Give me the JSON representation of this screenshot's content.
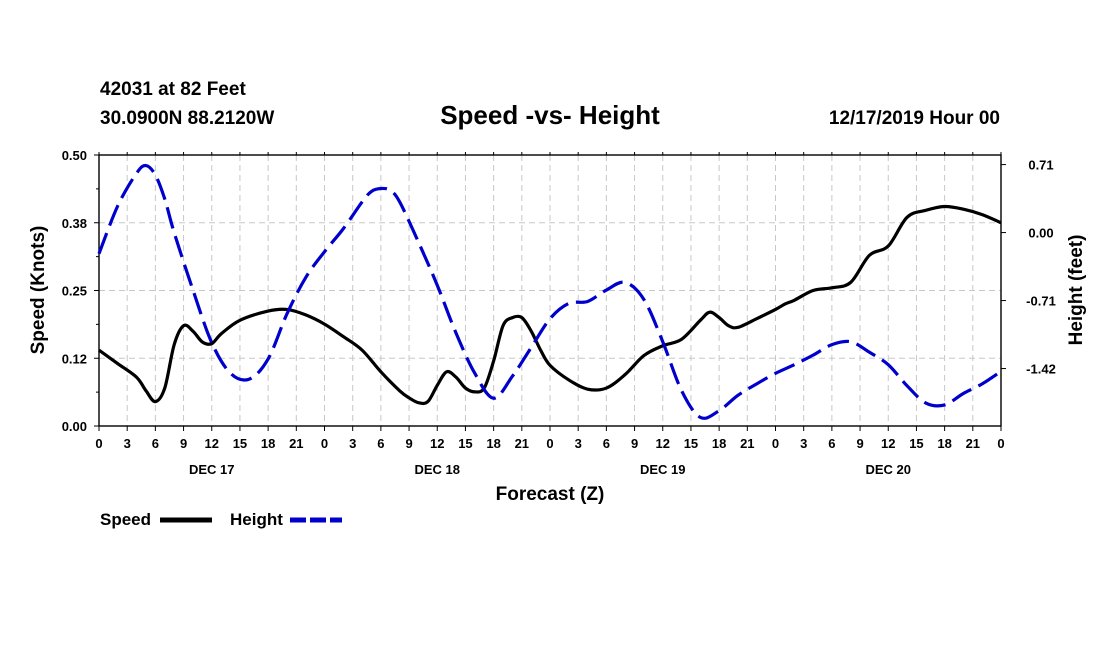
{
  "header": {
    "station": "42031 at 82 Feet",
    "location": "30.0900N 88.2120W",
    "title": "Speed -vs- Height",
    "date": "12/17/2019 Hour 00"
  },
  "legend": {
    "speed_label": "Speed",
    "height_label": "Height"
  },
  "chart_data": {
    "type": "line",
    "title": "Speed -vs- Height",
    "xlabel": "Forecast (Z)",
    "ylabel": "Speed (Knots)",
    "y2label": "Height (feet)",
    "xlim": [
      0,
      96
    ],
    "ylim": [
      0.0,
      0.5
    ],
    "y2lim": [
      -2.02,
      0.81
    ],
    "x_tick_values": [
      0,
      3,
      6,
      9,
      12,
      15,
      18,
      21,
      24,
      27,
      30,
      33,
      36,
      39,
      42,
      45,
      48,
      51,
      54,
      57,
      60,
      63,
      66,
      69,
      72,
      75,
      78,
      81,
      84,
      87,
      90,
      93,
      96
    ],
    "x_tick_labels": [
      "0",
      "3",
      "6",
      "9",
      "12",
      "15",
      "18",
      "21",
      "0",
      "3",
      "6",
      "9",
      "12",
      "15",
      "18",
      "21",
      "0",
      "3",
      "6",
      "9",
      "12",
      "15",
      "18",
      "21",
      "0",
      "3",
      "6",
      "9",
      "12",
      "15",
      "18",
      "21",
      "0"
    ],
    "day_labels": [
      {
        "x": 12,
        "label": "DEC 17"
      },
      {
        "x": 36,
        "label": "DEC 18"
      },
      {
        "x": 60,
        "label": "DEC 19"
      },
      {
        "x": 84,
        "label": "DEC 20"
      }
    ],
    "y_ticks": [
      0.0,
      0.125,
      0.25,
      0.375,
      0.5
    ],
    "y_tick_labels": [
      "0.00",
      "0.12",
      "0.25",
      "0.38",
      "0.50"
    ],
    "y2_ticks": [
      0.71,
      0.0,
      -0.71,
      -1.42
    ],
    "y2_tick_labels": [
      "0.71",
      "0.00",
      "-0.71",
      "-1.42"
    ],
    "grid": true,
    "legend_position": "bottom-left",
    "series": [
      {
        "name": "Speed",
        "axis": "left",
        "color": "#000000",
        "style": "solid",
        "x": [
          0,
          2,
          4,
          5,
          6,
          7,
          8,
          9,
          10,
          11,
          12,
          13,
          15,
          18,
          20,
          22,
          24,
          26,
          28,
          30,
          32,
          33,
          34,
          35,
          36,
          37,
          38,
          39,
          40,
          41,
          42,
          43,
          44,
          45,
          46,
          47,
          48,
          50,
          52,
          54,
          56,
          58,
          60,
          62,
          64,
          65,
          66,
          67,
          68,
          70,
          72,
          73,
          74,
          76,
          78,
          80,
          82,
          84,
          86,
          88,
          90,
          92,
          94,
          96
        ],
        "values": [
          0.14,
          0.115,
          0.09,
          0.065,
          0.045,
          0.07,
          0.15,
          0.185,
          0.175,
          0.155,
          0.152,
          0.17,
          0.195,
          0.212,
          0.215,
          0.205,
          0.188,
          0.165,
          0.14,
          0.1,
          0.065,
          0.052,
          0.043,
          0.045,
          0.075,
          0.1,
          0.09,
          0.07,
          0.063,
          0.07,
          0.12,
          0.185,
          0.2,
          0.2,
          0.175,
          0.14,
          0.112,
          0.085,
          0.068,
          0.07,
          0.095,
          0.13,
          0.148,
          0.16,
          0.195,
          0.21,
          0.2,
          0.185,
          0.182,
          0.198,
          0.215,
          0.225,
          0.232,
          0.25,
          0.255,
          0.265,
          0.315,
          0.332,
          0.385,
          0.398,
          0.405,
          0.4,
          0.39,
          0.375
        ]
      },
      {
        "name": "Height",
        "axis": "right",
        "color": "#0000cc",
        "style": "dashed",
        "x": [
          0,
          2,
          4,
          5,
          6,
          7,
          8,
          10,
          12,
          14,
          16,
          18,
          20,
          22,
          24,
          26,
          28,
          29,
          30,
          31,
          32,
          34,
          36,
          38,
          40,
          42,
          44,
          46,
          48,
          50,
          52,
          54,
          56,
          58,
          60,
          62,
          64,
          66,
          68,
          70,
          72,
          74,
          76,
          78,
          80,
          82,
          84,
          86,
          88,
          90,
          92,
          94,
          96
        ],
        "values": [
          -0.22,
          0.28,
          0.62,
          0.7,
          0.6,
          0.35,
          0.0,
          -0.6,
          -1.15,
          -1.47,
          -1.53,
          -1.32,
          -0.85,
          -0.47,
          -0.2,
          0.04,
          0.32,
          0.43,
          0.46,
          0.44,
          0.32,
          -0.1,
          -0.55,
          -1.05,
          -1.47,
          -1.73,
          -1.5,
          -1.2,
          -0.9,
          -0.74,
          -0.72,
          -0.6,
          -0.52,
          -0.7,
          -1.14,
          -1.65,
          -1.93,
          -1.86,
          -1.7,
          -1.58,
          -1.47,
          -1.38,
          -1.28,
          -1.17,
          -1.14,
          -1.25,
          -1.38,
          -1.6,
          -1.78,
          -1.8,
          -1.68,
          -1.58,
          -1.45
        ]
      }
    ]
  }
}
